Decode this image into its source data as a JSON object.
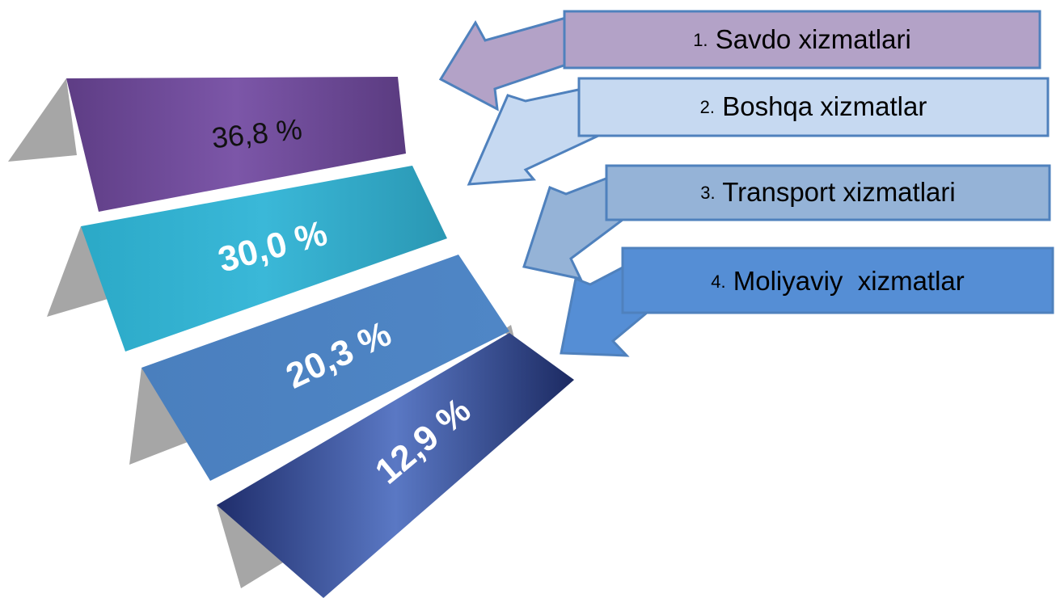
{
  "items": [
    {
      "number": "1.",
      "label": "Savdo xizmatlari",
      "share": "36,8 %"
    },
    {
      "number": "2.",
      "label": "Boshqa xizmatlar",
      "share": "30,0 %"
    },
    {
      "number": "3.",
      "label": "Transport xizmatlari",
      "share": "20,3 %"
    },
    {
      "number": "4.",
      "label": "Moliyaviy  xizmatlar",
      "share": "12,9 %"
    }
  ]
}
